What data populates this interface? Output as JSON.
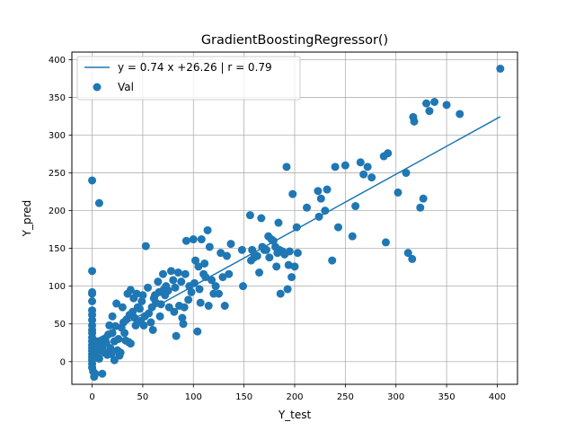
{
  "chart_data": {
    "type": "scatter",
    "title": "GradientBoostingRegressor()",
    "xlabel": "Y_test",
    "ylabel": "Y_pred",
    "xlim": [
      -20,
      420
    ],
    "ylim": [
      -30,
      410
    ],
    "xticks": [
      0,
      50,
      100,
      150,
      200,
      250,
      300,
      350,
      400
    ],
    "yticks": [
      0,
      50,
      100,
      150,
      200,
      250,
      300,
      350,
      400
    ],
    "grid": true,
    "legend_position": "top-left",
    "colors": {
      "series": "#1f77b4",
      "grid": "#b0b0b0"
    },
    "series": [
      {
        "name": "y = 0.74 x +26.26 | r = 0.79",
        "kind": "line",
        "slope": 0.74,
        "intercept": 26.26,
        "x_range": [
          0,
          403
        ]
      },
      {
        "name": "Val",
        "kind": "scatter",
        "points": [
          [
            0,
            240
          ],
          [
            7,
            210
          ],
          [
            0,
            120
          ],
          [
            0,
            92
          ],
          [
            0,
            90
          ],
          [
            0,
            80
          ],
          [
            0,
            68
          ],
          [
            0,
            62
          ],
          [
            0,
            55
          ],
          [
            0,
            48
          ],
          [
            0,
            42
          ],
          [
            0,
            38
          ],
          [
            0,
            32
          ],
          [
            0,
            27
          ],
          [
            0,
            22
          ],
          [
            0,
            18
          ],
          [
            0,
            14
          ],
          [
            0,
            10
          ],
          [
            0,
            6
          ],
          [
            0,
            2
          ],
          [
            0,
            -3
          ],
          [
            0,
            -8
          ],
          [
            1,
            -13
          ],
          [
            2,
            -20
          ],
          [
            3,
            -16
          ],
          [
            2,
            8
          ],
          [
            3,
            15
          ],
          [
            4,
            20
          ],
          [
            5,
            27
          ],
          [
            5,
            12
          ],
          [
            7,
            4
          ],
          [
            8,
            22
          ],
          [
            9,
            28
          ],
          [
            10,
            18
          ],
          [
            10,
            -16
          ],
          [
            12,
            12
          ],
          [
            13,
            30
          ],
          [
            14,
            25
          ],
          [
            15,
            9
          ],
          [
            16,
            36
          ],
          [
            17,
            48
          ],
          [
            18,
            18
          ],
          [
            19,
            10
          ],
          [
            20,
            38
          ],
          [
            20,
            60
          ],
          [
            22,
            2
          ],
          [
            22,
            27
          ],
          [
            23,
            47
          ],
          [
            24,
            77
          ],
          [
            25,
            15
          ],
          [
            26,
            30
          ],
          [
            27,
            8
          ],
          [
            28,
            12
          ],
          [
            29,
            45
          ],
          [
            30,
            72
          ],
          [
            31,
            52
          ],
          [
            32,
            38
          ],
          [
            33,
            28
          ],
          [
            34,
            56
          ],
          [
            35,
            90
          ],
          [
            36,
            26
          ],
          [
            37,
            62
          ],
          [
            38,
            95
          ],
          [
            38,
            24
          ],
          [
            40,
            66
          ],
          [
            41,
            84
          ],
          [
            42,
            58
          ],
          [
            43,
            48
          ],
          [
            44,
            90
          ],
          [
            45,
            72
          ],
          [
            47,
            70
          ],
          [
            48,
            54
          ],
          [
            49,
            80
          ],
          [
            50,
            88
          ],
          [
            51,
            48
          ],
          [
            52,
            60
          ],
          [
            53,
            153
          ],
          [
            55,
            98
          ],
          [
            56,
            64
          ],
          [
            58,
            52
          ],
          [
            59,
            72
          ],
          [
            60,
            42
          ],
          [
            61,
            84
          ],
          [
            62,
            88
          ],
          [
            63,
            78
          ],
          [
            65,
            106
          ],
          [
            66,
            92
          ],
          [
            67,
            60
          ],
          [
            68,
            76
          ],
          [
            70,
            116
          ],
          [
            71,
            96
          ],
          [
            72,
            88
          ],
          [
            73,
            100
          ],
          [
            75,
            94
          ],
          [
            76,
            72
          ],
          [
            78,
            120
          ],
          [
            80,
            108
          ],
          [
            81,
            66
          ],
          [
            82,
            98
          ],
          [
            83,
            34
          ],
          [
            85,
            118
          ],
          [
            86,
            74
          ],
          [
            88,
            106
          ],
          [
            89,
            58
          ],
          [
            90,
            50
          ],
          [
            91,
            72
          ],
          [
            92,
            116
          ],
          [
            93,
            160
          ],
          [
            95,
            82
          ],
          [
            96,
            100
          ],
          [
            98,
            92
          ],
          [
            100,
            162
          ],
          [
            101,
            104
          ],
          [
            102,
            134
          ],
          [
            104,
            40
          ],
          [
            105,
            126
          ],
          [
            106,
            96
          ],
          [
            107,
            78
          ],
          [
            108,
            162
          ],
          [
            110,
            116
          ],
          [
            111,
            130
          ],
          [
            112,
            112
          ],
          [
            114,
            174
          ],
          [
            115,
            74
          ],
          [
            116,
            152
          ],
          [
            118,
            108
          ],
          [
            120,
            90
          ],
          [
            122,
            100
          ],
          [
            125,
            90
          ],
          [
            127,
            144
          ],
          [
            129,
            112
          ],
          [
            131,
            74
          ],
          [
            133,
            140
          ],
          [
            135,
            116
          ],
          [
            137,
            156
          ],
          [
            148,
            148
          ],
          [
            149,
            100
          ],
          [
            156,
            194
          ],
          [
            157,
            134
          ],
          [
            158,
            148
          ],
          [
            160,
            138
          ],
          [
            163,
            140
          ],
          [
            165,
            118
          ],
          [
            167,
            190
          ],
          [
            168,
            152
          ],
          [
            170,
            148
          ],
          [
            172,
            148
          ],
          [
            174,
            166
          ],
          [
            175,
            138
          ],
          [
            177,
            162
          ],
          [
            179,
            160
          ],
          [
            181,
            152
          ],
          [
            182,
            126
          ],
          [
            183,
            144
          ],
          [
            184,
            184
          ],
          [
            185,
            148
          ],
          [
            186,
            90
          ],
          [
            188,
            146
          ],
          [
            190,
            142
          ],
          [
            192,
            258
          ],
          [
            193,
            96
          ],
          [
            194,
            128
          ],
          [
            195,
            146
          ],
          [
            197,
            112
          ],
          [
            198,
            222
          ],
          [
            200,
            126
          ],
          [
            202,
            178
          ],
          [
            203,
            144
          ],
          [
            212,
            204
          ],
          [
            223,
            226
          ],
          [
            224,
            192
          ],
          [
            226,
            216
          ],
          [
            230,
            200
          ],
          [
            232,
            228
          ],
          [
            237,
            134
          ],
          [
            240,
            258
          ],
          [
            243,
            178
          ],
          [
            250,
            260
          ],
          [
            257,
            166
          ],
          [
            260,
            206
          ],
          [
            265,
            264
          ],
          [
            268,
            248
          ],
          [
            272,
            258
          ],
          [
            276,
            244
          ],
          [
            288,
            272
          ],
          [
            290,
            158
          ],
          [
            292,
            276
          ],
          [
            302,
            224
          ],
          [
            310,
            250
          ],
          [
            312,
            144
          ],
          [
            316,
            136
          ],
          [
            317,
            324
          ],
          [
            318,
            318
          ],
          [
            324,
            204
          ],
          [
            327,
            216
          ],
          [
            330,
            342
          ],
          [
            333,
            332
          ],
          [
            338,
            344
          ],
          [
            350,
            340
          ],
          [
            363,
            328
          ],
          [
            403,
            388
          ]
        ]
      }
    ]
  }
}
